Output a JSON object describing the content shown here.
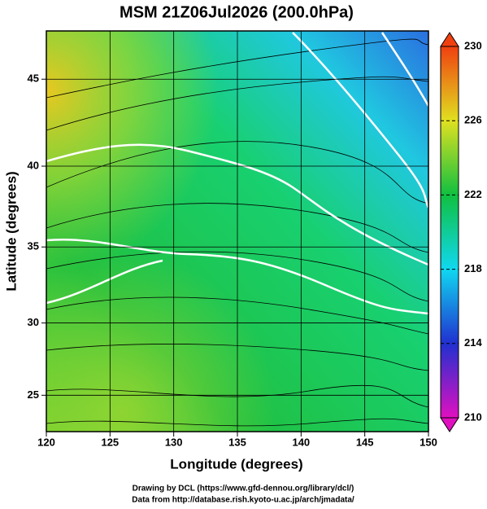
{
  "title": "MSM 21Z06Jul2026 (200.0hPa)",
  "x_axis": {
    "label": "Longitude (degrees)",
    "lim": [
      120,
      150
    ],
    "ticks": [
      120,
      125,
      130,
      135,
      140,
      145,
      150
    ]
  },
  "y_axis": {
    "label": "Latitude  (degrees)",
    "lim": [
      22.4,
      47.6
    ],
    "ticks": [
      25,
      30,
      35,
      40,
      45
    ],
    "projection": "mercator"
  },
  "colorbar": {
    "lim": [
      210,
      230
    ],
    "ticks": [
      210,
      214,
      218,
      222,
      226,
      230
    ],
    "colors": [
      "#e010c0",
      "#2030d0",
      "#10d8f0",
      "#10c040",
      "#e0e020",
      "#f04010"
    ]
  },
  "credits": [
    "Drawing by DCL (https://www.gfd-dennou.org/library/dcl/)",
    "Data from http://database.rish.kyoto-u.ac.jp/arch/jmadata/"
  ]
}
